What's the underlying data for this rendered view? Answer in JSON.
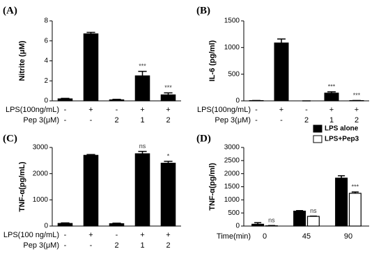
{
  "chart_data": [
    {
      "type": "bar",
      "panel": "(A)",
      "ylabel": "Nitrite (μM)",
      "values": [
        0.2,
        6.7,
        0.1,
        2.5,
        0.6
      ],
      "errors": [
        0.05,
        0.15,
        0.05,
        0.45,
        0.2
      ],
      "annotations": [
        null,
        null,
        null,
        "***",
        "***"
      ],
      "color": "#000000",
      "ylim": [
        0,
        8
      ],
      "yticks": [
        0,
        2,
        4,
        6,
        8
      ],
      "rows": [
        {
          "label": "LPS(100ng/mL)",
          "entries": [
            "-",
            "+",
            "-",
            "+",
            "+"
          ]
        },
        {
          "label": "Pep 3(μM)",
          "entries": [
            "-",
            "-",
            "2",
            "1",
            "2"
          ]
        }
      ]
    },
    {
      "type": "bar",
      "panel": "(B)",
      "ylabel": "IL-6 (pg/ml)",
      "values": [
        5,
        1085,
        0,
        145,
        5
      ],
      "errors": [
        2,
        75,
        0,
        25,
        2
      ],
      "annotations": [
        null,
        null,
        null,
        "***",
        "***"
      ],
      "color": "#000000",
      "ylim": [
        0,
        1500
      ],
      "yticks": [
        0,
        500,
        1000,
        1500
      ],
      "rows": [
        {
          "label": "LPS(100ng/mL)",
          "entries": [
            "-",
            "+",
            "-",
            "+",
            "+"
          ]
        },
        {
          "label": "Pep 3(μM)",
          "entries": [
            "-",
            "-",
            "2",
            "1",
            "2"
          ]
        }
      ]
    },
    {
      "type": "bar",
      "panel": "(C)",
      "ylabel": "TNF-α(pg/mL)",
      "values": [
        100,
        2700,
        90,
        2760,
        2400
      ],
      "errors": [
        20,
        30,
        20,
        90,
        70
      ],
      "annotations": [
        null,
        null,
        null,
        "ns",
        "*"
      ],
      "color": "#000000",
      "ylim": [
        0,
        3000
      ],
      "yticks": [
        0,
        1000,
        2000,
        3000
      ],
      "rows": [
        {
          "label": "LPS(100 ng/mL)",
          "entries": [
            "-",
            "+",
            "-",
            "+",
            "+"
          ]
        },
        {
          "label": "Pep 3(μM)",
          "entries": [
            "-",
            "-",
            "2",
            "1",
            "2"
          ]
        }
      ]
    },
    {
      "type": "grouped_bar",
      "panel": "(D)",
      "ylabel": "TNF-α(pg/ml)",
      "xlabel": "Time(min)",
      "categories": [
        "0",
        "45",
        "90"
      ],
      "legend": "top-right",
      "series": [
        {
          "name": "LPS alone",
          "color": "#000000",
          "values": [
            70,
            570,
            1830
          ],
          "errors": [
            60,
            20,
            90
          ],
          "annotations": [
            null,
            null,
            null
          ]
        },
        {
          "name": "LPS+Pep3",
          "color": "#ffffff",
          "values": [
            10,
            370,
            1250
          ],
          "errors": [
            10,
            10,
            50
          ],
          "annotations": [
            "ns",
            "ns",
            "***"
          ]
        }
      ],
      "ylim": [
        0,
        3000
      ],
      "yticks": [
        0,
        500,
        1000,
        1500,
        2000,
        2500,
        3000
      ]
    }
  ]
}
